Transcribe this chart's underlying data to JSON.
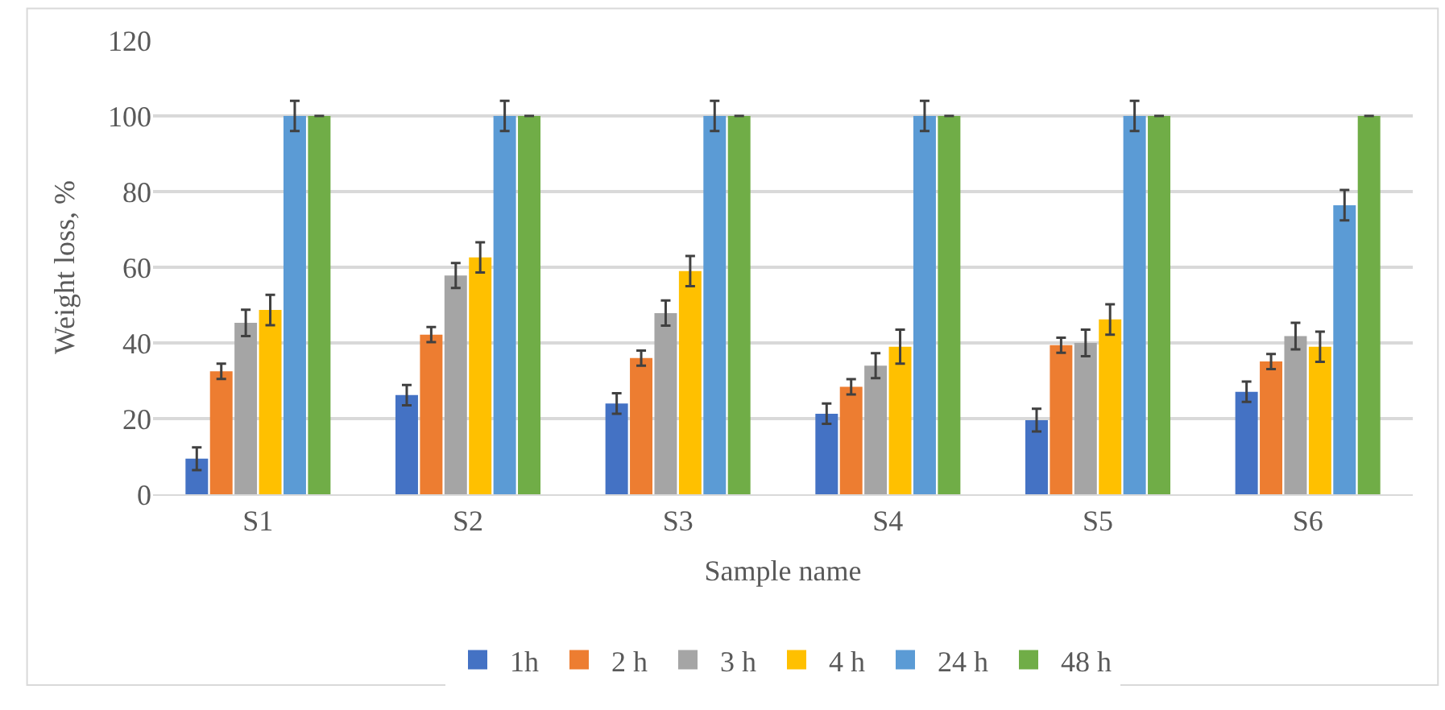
{
  "chart_data": {
    "type": "bar",
    "xlabel": "Sample name",
    "ylabel": "Weight loss, %",
    "categories": [
      "S1",
      "S2",
      "S3",
      "S4",
      "S5",
      "S6"
    ],
    "ylim": [
      0,
      120
    ],
    "yticks": [
      0,
      20,
      40,
      60,
      80,
      100,
      120
    ],
    "grid": "y",
    "legend": "bottom",
    "series": [
      {
        "name": "1h",
        "color": "#4472c4",
        "values": [
          9.4,
          26.2,
          24,
          21.3,
          19.6,
          27.1
        ],
        "errors": [
          3,
          2.7,
          2.7,
          2.7,
          3,
          2.7
        ]
      },
      {
        "name": "2 h",
        "color": "#ed7d31",
        "values": [
          32.5,
          42.2,
          36,
          28.4,
          39.4,
          35.1
        ],
        "errors": [
          2,
          2,
          2,
          2,
          2,
          2
        ]
      },
      {
        "name": "3 h",
        "color": "#a5a5a5",
        "values": [
          45.3,
          57.8,
          47.9,
          34,
          40,
          41.8
        ],
        "errors": [
          3.5,
          3.3,
          3.3,
          3.3,
          3.5,
          3.5
        ]
      },
      {
        "name": "4 h",
        "color": "#ffc000",
        "values": [
          48.7,
          62.6,
          59,
          39,
          46.2,
          39
        ],
        "errors": [
          4,
          4,
          4,
          4.5,
          4,
          4
        ]
      },
      {
        "name": "24 h",
        "color": "#5b9bd5",
        "values": [
          100,
          100,
          100,
          100,
          100,
          76.4
        ],
        "errors": [
          4,
          4,
          4,
          4,
          4,
          4
        ]
      },
      {
        "name": "48 h",
        "color": "#70ad47",
        "values": [
          100,
          100,
          100,
          100,
          100,
          100
        ],
        "errors": [
          0,
          0,
          0,
          0,
          0,
          0
        ]
      }
    ]
  }
}
